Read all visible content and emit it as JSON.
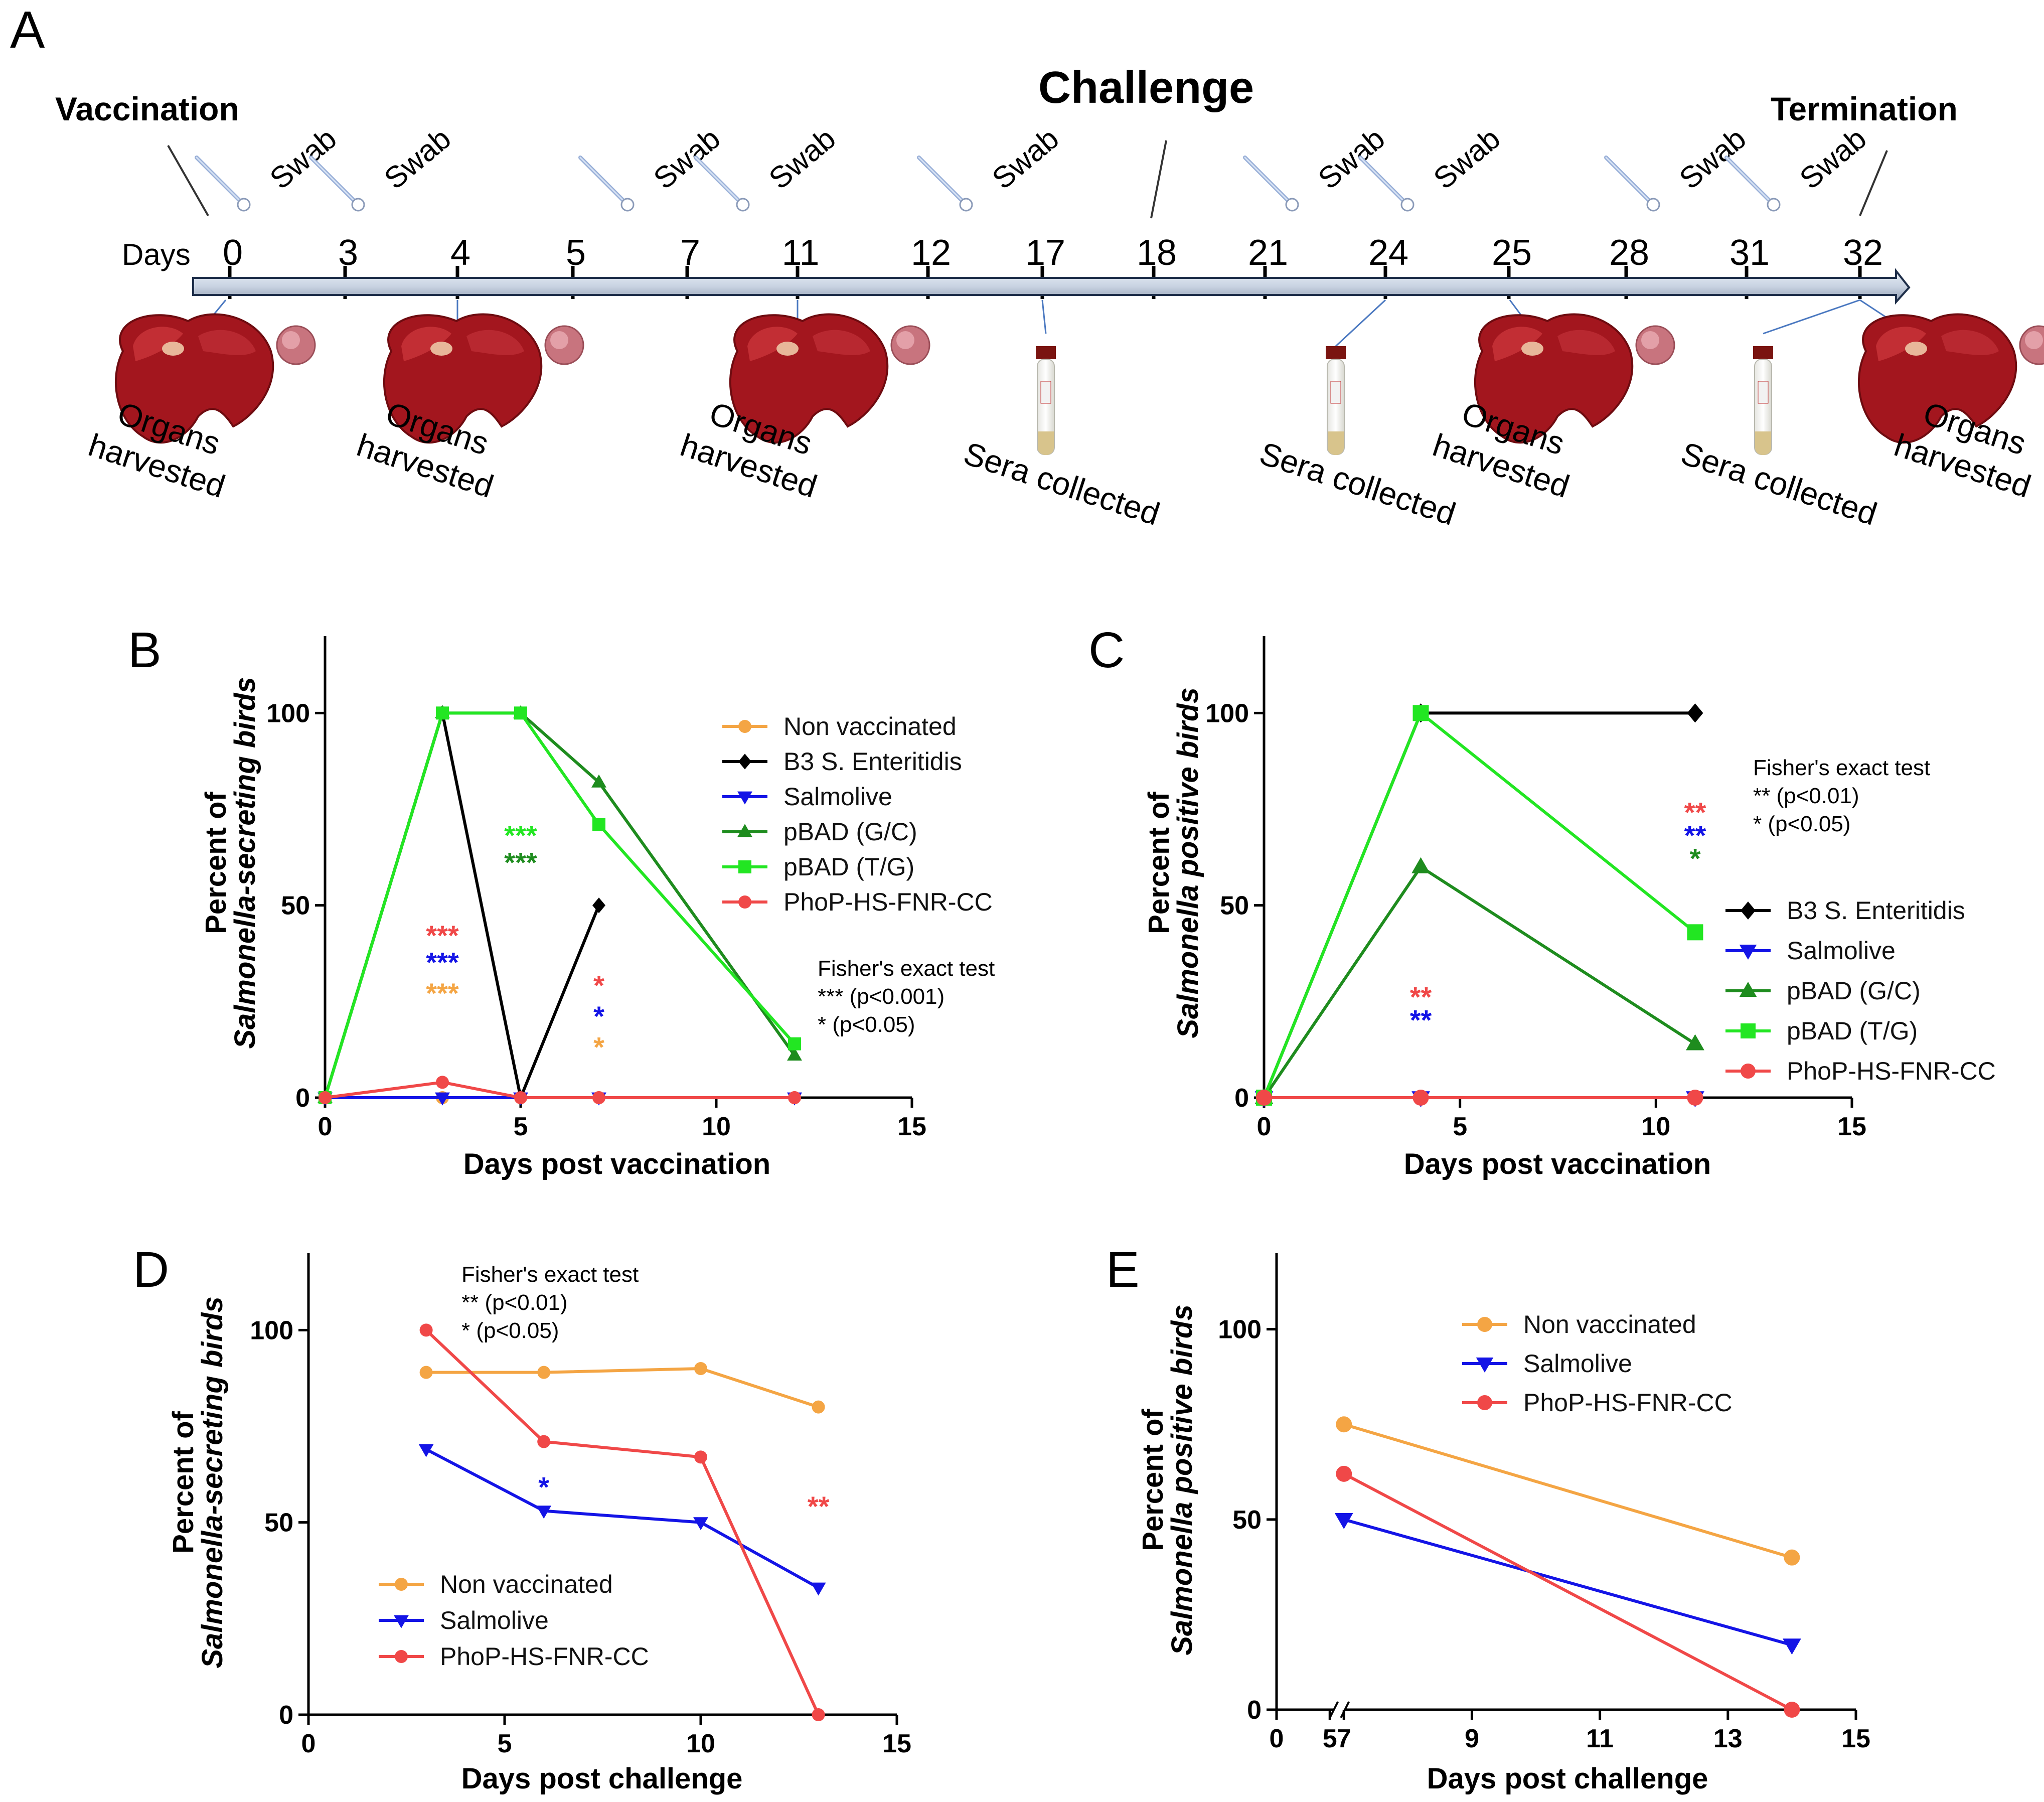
{
  "panel_a": {
    "letter": "A",
    "vaccination": "Vaccination",
    "challenge": "Challenge",
    "termination": "Termination",
    "days_label": "Days",
    "days": [
      "0",
      "3",
      "4",
      "5",
      "7",
      "11",
      "12",
      "17",
      "18",
      "21",
      "24",
      "25",
      "28",
      "31",
      "32"
    ],
    "swab": "Swab",
    "organs_1": "Organs",
    "organs_2": "harvested",
    "sera": "Sera collected"
  },
  "colors": {
    "nonvac": "#F4A544",
    "b3": "#000000",
    "salmolive": "#1414E6",
    "pbad_gc": "#1E8C1E",
    "pbad_tg": "#22E622",
    "phop": "#F04848"
  },
  "chart_data": [
    {
      "panel": "B",
      "type": "line",
      "xlabel": "Days post vaccination",
      "ylabel_1": "Percent of",
      "ylabel_2": "Salmonella-secreting birds",
      "xlim": [
        0,
        15
      ],
      "ylim": [
        0,
        120
      ],
      "xticks": [
        "0",
        "5",
        "10",
        "15"
      ],
      "yticks": [
        "0",
        "50",
        "100"
      ],
      "series": [
        {
          "name": "Non vaccinated",
          "x": [
            0,
            3,
            5,
            7,
            12
          ],
          "values": [
            0,
            0,
            0,
            0,
            0
          ]
        },
        {
          "name": "B3 S. Enteritidis",
          "x": [
            0,
            3,
            5,
            7
          ],
          "values": [
            0,
            100,
            0,
            50
          ]
        },
        {
          "name": "Salmolive",
          "x": [
            0,
            3,
            5,
            7,
            12
          ],
          "values": [
            0,
            0,
            0,
            0,
            0
          ]
        },
        {
          "name": "pBAD (G/C)",
          "x": [
            0,
            3,
            5,
            7,
            12
          ],
          "values": [
            0,
            100,
            100,
            82,
            11
          ]
        },
        {
          "name": "pBAD (T/G)",
          "x": [
            0,
            3,
            5,
            7,
            12
          ],
          "values": [
            0,
            100,
            100,
            71,
            14
          ]
        },
        {
          "name": "PhoP-HS-FNR-CC",
          "x": [
            0,
            3,
            5,
            7,
            12
          ],
          "values": [
            0,
            4,
            0,
            0,
            0
          ]
        }
      ],
      "stats_title": "Fisher's exact test",
      "stats_lines": [
        "*** (p<0.001)",
        "* (p<0.05)"
      ],
      "annotations": [
        {
          "text": "***",
          "x": 3,
          "y": 42,
          "series": "PhoP-HS-FNR-CC"
        },
        {
          "text": "***",
          "x": 3,
          "y": 35,
          "series": "Salmolive"
        },
        {
          "text": "***",
          "x": 3,
          "y": 27,
          "series": "Non vaccinated"
        },
        {
          "text": "***",
          "x": 5,
          "y": 68,
          "series": "pBAD (T/G)"
        },
        {
          "text": "***",
          "x": 5,
          "y": 61,
          "series": "pBAD (G/C)"
        },
        {
          "text": "*",
          "x": 7,
          "y": 29,
          "series": "PhoP-HS-FNR-CC"
        },
        {
          "text": "*",
          "x": 7,
          "y": 21,
          "series": "Salmolive"
        },
        {
          "text": "*",
          "x": 7,
          "y": 13,
          "series": "Non vaccinated"
        }
      ]
    },
    {
      "panel": "C",
      "type": "line",
      "xlabel": "Days post vaccination",
      "ylabel_1": "Percent of",
      "ylabel_2": "Salmonella positive birds",
      "xlim": [
        0,
        15
      ],
      "ylim": [
        0,
        120
      ],
      "xticks": [
        "0",
        "5",
        "10",
        "15"
      ],
      "yticks": [
        "0",
        "50",
        "100"
      ],
      "series": [
        {
          "name": "B3 S. Enteritidis",
          "x": [
            0,
            4,
            11
          ],
          "values": [
            0,
            100,
            100
          ]
        },
        {
          "name": "Salmolive",
          "x": [
            0,
            4,
            11
          ],
          "values": [
            0,
            0,
            0
          ]
        },
        {
          "name": "pBAD (G/C)",
          "x": [
            0,
            4,
            11
          ],
          "values": [
            0,
            60,
            14
          ]
        },
        {
          "name": "pBAD (T/G)",
          "x": [
            0,
            4,
            11
          ],
          "values": [
            0,
            100,
            43
          ]
        },
        {
          "name": "PhoP-HS-FNR-CC",
          "x": [
            0,
            4,
            11
          ],
          "values": [
            0,
            0,
            0
          ]
        }
      ],
      "stats_title": "Fisher's exact test",
      "stats_lines": [
        "** (p<0.01)",
        "* (p<0.05)"
      ],
      "annotations": [
        {
          "text": "**",
          "x": 4,
          "y": 26,
          "series": "PhoP-HS-FNR-CC"
        },
        {
          "text": "**",
          "x": 4,
          "y": 20,
          "series": "Salmolive"
        },
        {
          "text": "**",
          "x": 11,
          "y": 74,
          "series": "PhoP-HS-FNR-CC"
        },
        {
          "text": "**",
          "x": 11,
          "y": 68,
          "series": "Salmolive"
        },
        {
          "text": "*",
          "x": 11,
          "y": 62,
          "series": "pBAD (G/C)"
        }
      ]
    },
    {
      "panel": "D",
      "type": "line",
      "xlabel": "Days post challenge",
      "ylabel_1": "Percent of",
      "ylabel_2": "Salmonella-secreting birds",
      "xlim": [
        0,
        15
      ],
      "ylim": [
        0,
        120
      ],
      "xticks": [
        "0",
        "5",
        "10",
        "15"
      ],
      "yticks": [
        "0",
        "50",
        "100"
      ],
      "series": [
        {
          "name": "Non vaccinated",
          "x": [
            3,
            6,
            10,
            13
          ],
          "values": [
            89,
            89,
            90,
            80
          ]
        },
        {
          "name": "Salmolive",
          "x": [
            3,
            6,
            10,
            13
          ],
          "values": [
            69,
            53,
            50,
            33
          ]
        },
        {
          "name": "PhoP-HS-FNR-CC",
          "x": [
            3,
            6,
            10,
            13
          ],
          "values": [
            100,
            71,
            67,
            0
          ]
        }
      ],
      "stats_title": "Fisher's exact test",
      "stats_lines": [
        "** (p<0.01)",
        "* (p<0.05)"
      ],
      "annotations": [
        {
          "text": "*",
          "x": 6,
          "y": 59,
          "series": "Salmolive"
        },
        {
          "text": "**",
          "x": 13,
          "y": 54,
          "series": "PhoP-HS-FNR-CC"
        }
      ]
    },
    {
      "panel": "E",
      "type": "line",
      "xlabel": "Days post challenge",
      "ylabel_1": "Percent of",
      "ylabel_2": "Salmonella positive birds",
      "xlim": [
        0,
        15
      ],
      "xbreak": [
        5,
        7
      ],
      "ylim": [
        0,
        120
      ],
      "xticks": [
        "0",
        "5",
        "7",
        "9",
        "11",
        "13",
        "15"
      ],
      "yticks": [
        "0",
        "50",
        "100"
      ],
      "series": [
        {
          "name": "Non vaccinated",
          "x": [
            7,
            14
          ],
          "values": [
            75,
            40
          ]
        },
        {
          "name": "Salmolive",
          "x": [
            7,
            14
          ],
          "values": [
            50,
            17
          ]
        },
        {
          "name": "PhoP-HS-FNR-CC",
          "x": [
            7,
            14
          ],
          "values": [
            62,
            0
          ]
        }
      ]
    }
  ]
}
